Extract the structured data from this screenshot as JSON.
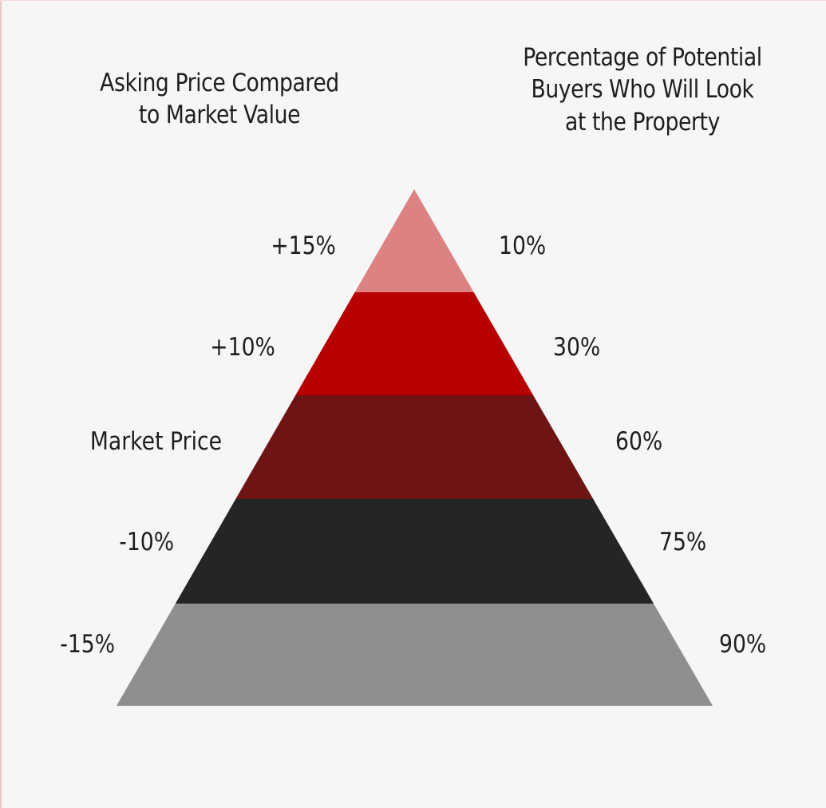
{
  "headings": {
    "left": [
      "Asking Price Compared",
      "to Market Value"
    ],
    "right": [
      "Percentage of Potential",
      "Buyers Who Will Look",
      "at the Property"
    ]
  },
  "levels": [
    {
      "asking": "+15%",
      "buyers": "10%",
      "color": "#dd8282"
    },
    {
      "asking": "+10%",
      "buyers": "30%",
      "color": "#b70000"
    },
    {
      "asking": "Market Price",
      "buyers": "60%",
      "color": "#6e1414"
    },
    {
      "asking": "-10%",
      "buyers": "75%",
      "color": "#252525"
    },
    {
      "asking": "-15%",
      "buyers": "90%",
      "color": "#8f8f8f"
    }
  ]
}
